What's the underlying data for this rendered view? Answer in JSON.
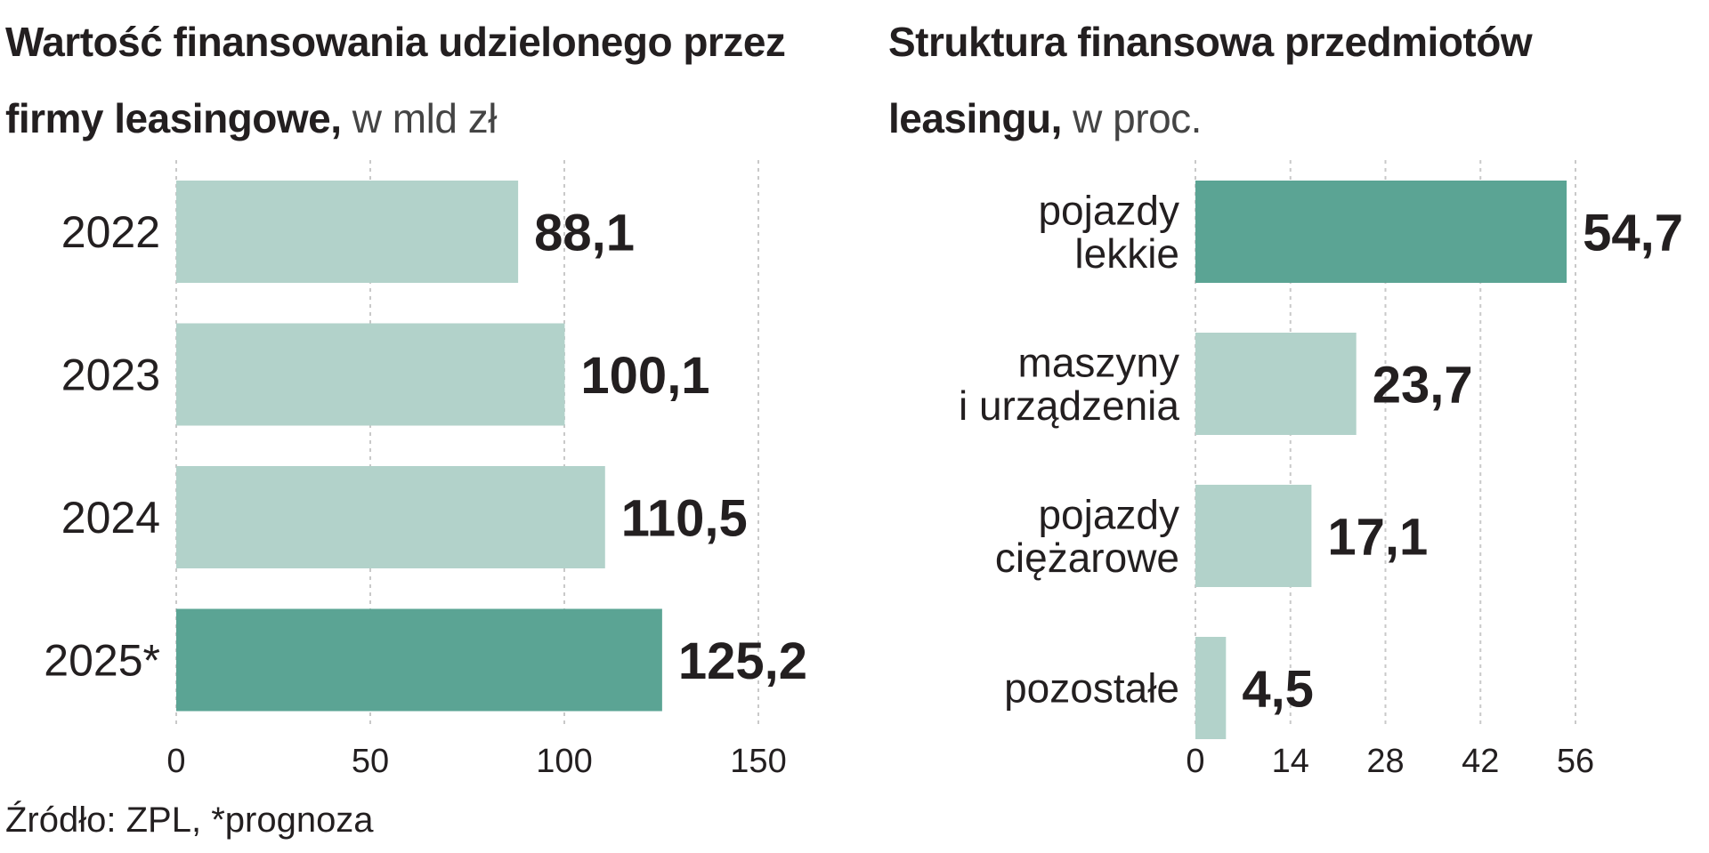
{
  "chart_data": [
    {
      "type": "bar",
      "orientation": "horizontal",
      "title": "Wartość finansowania udzielonego przez firmy leasingowe,",
      "unit": "w mld zł",
      "categories": [
        "2022",
        "2023",
        "2024",
        "2025*"
      ],
      "values": [
        88.1,
        100.1,
        110.5,
        125.2
      ],
      "value_labels": [
        "88,1",
        "100,1",
        "110,5",
        "125,2"
      ],
      "highlight": [
        false,
        false,
        false,
        true
      ],
      "xlim": [
        0,
        150
      ],
      "ticks": [
        "0",
        "50",
        "100",
        "150"
      ],
      "tick_values": [
        0,
        50,
        100,
        150
      ],
      "grid": true
    },
    {
      "type": "bar",
      "orientation": "horizontal",
      "title": "Struktura finansowa przedmiotów leasingu,",
      "unit": "w proc.",
      "categories": [
        [
          "pojazdy",
          "lekkie"
        ],
        [
          "maszyny",
          "i urządzenia"
        ],
        [
          "pojazdy",
          "ciężarowe"
        ],
        [
          "pozostałe"
        ]
      ],
      "values": [
        54.7,
        23.7,
        17.1,
        4.5
      ],
      "value_labels": [
        "54,7",
        "23,7",
        "17,1",
        "4,5"
      ],
      "highlight": [
        true,
        false,
        false,
        false
      ],
      "xlim": [
        0,
        56
      ],
      "ticks": [
        "0",
        "14",
        "28",
        "42",
        "56"
      ],
      "tick_values": [
        0,
        14,
        28,
        42,
        56
      ],
      "grid": true
    }
  ],
  "source_note": "Źródło: ZPL, *prognoza",
  "colors": {
    "bar_light": "#b2d2ca",
    "bar_highlight": "#5ba494",
    "grid": "#c9c9c9",
    "text": "#231f20"
  }
}
